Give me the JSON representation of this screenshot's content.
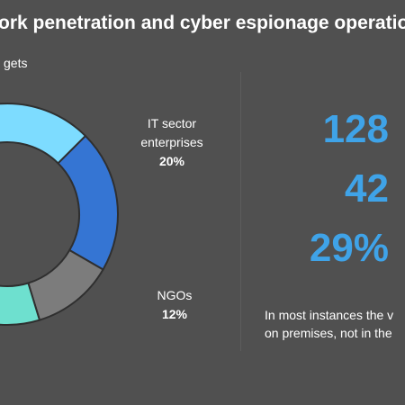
{
  "header": {
    "title": "ork penetration and cyber espionage operatio",
    "subtitle": "gets"
  },
  "chart_data": {
    "type": "pie",
    "style": "donut",
    "segments": [
      {
        "name": "",
        "value": null,
        "color": "#7ddcff"
      },
      {
        "name": "IT sector enterprises",
        "label_line1": "IT sector",
        "label_line2": "enterprises",
        "pct_label": "20%",
        "value": 20,
        "color": "#3575d3"
      },
      {
        "name": "NGOs",
        "label_line1": "NGOs",
        "pct_label": "12%",
        "value": 12,
        "color": "#7c7c7c"
      },
      {
        "name": "",
        "value": null,
        "color": "#6ee0cf"
      }
    ]
  },
  "stats": {
    "stat1": "128",
    "stat2": "42",
    "stat3": "29%"
  },
  "note": {
    "line1": "In most instances the v",
    "line2": "on premises, not in the"
  },
  "colors": {
    "background": "#505050",
    "stat_text": "#3fa3e8"
  }
}
